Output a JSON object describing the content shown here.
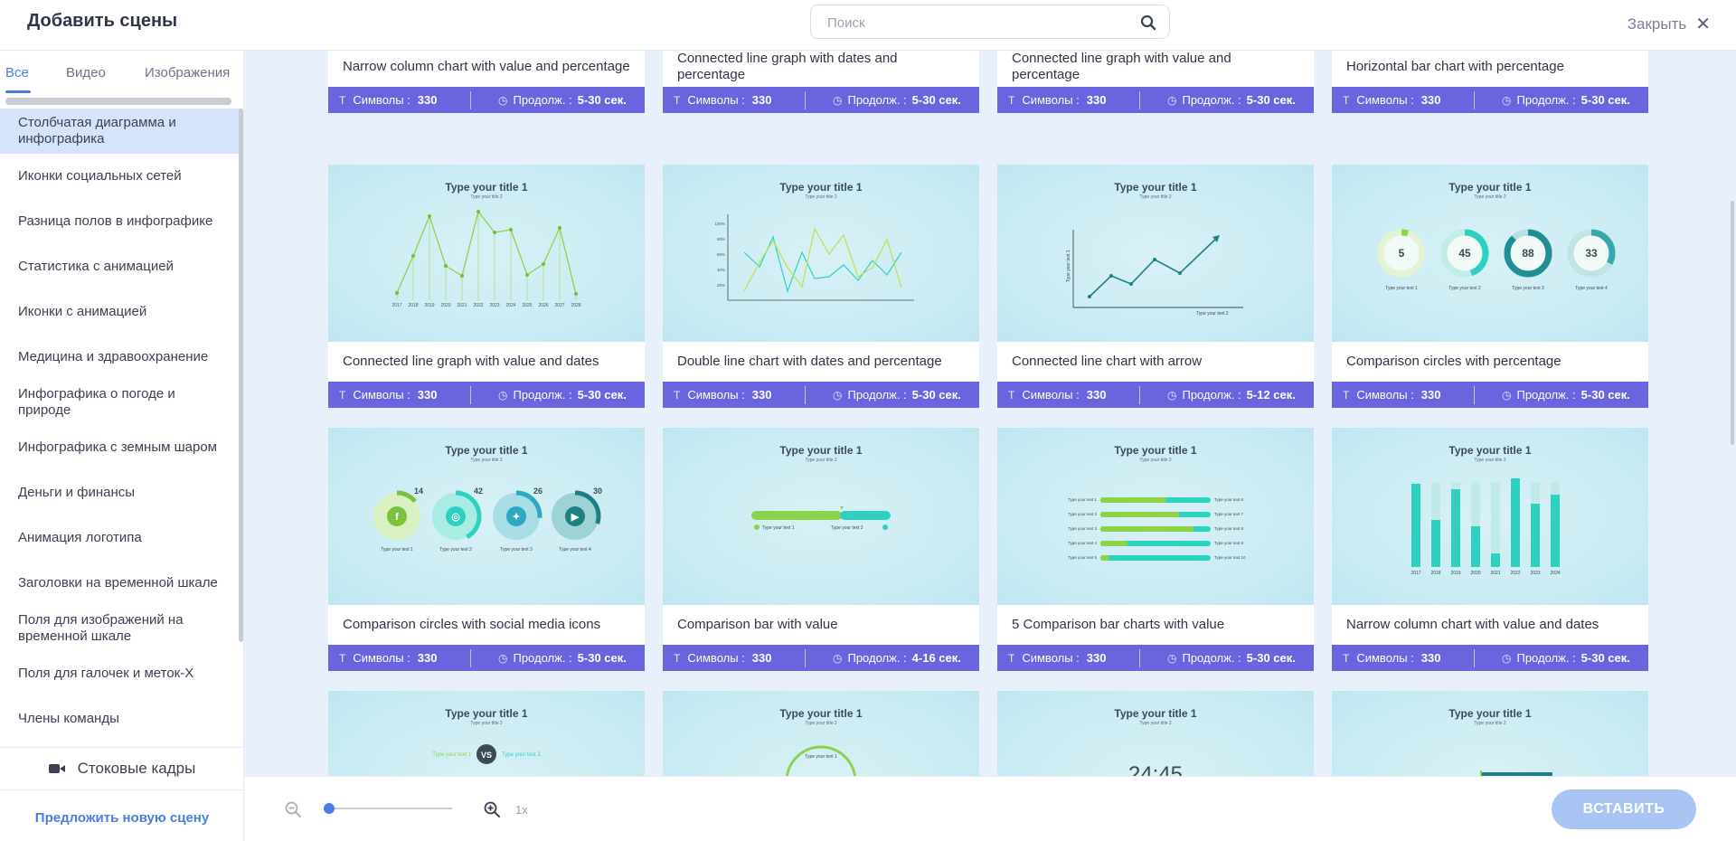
{
  "header": {
    "title": "Добавить сцены",
    "search_placeholder": "Поиск",
    "close_label": "Закрыть"
  },
  "sidebar": {
    "tabs": [
      "Все",
      "Видео",
      "Изображения"
    ],
    "categories": [
      "Столбчатая диаграмма и инфографика",
      "Иконки социальных сетей",
      "Разница полов в инфографике",
      "Статистика с анимацией",
      "Иконки с анимацией",
      "Медицина и здравоохранение",
      "Инфографика о погоде и природе",
      "Инфографика с земным шаром",
      "Деньги и финансы",
      "Анимация логотипа",
      "Заголовки на временной шкале",
      "Поля для изображений на временной шкале",
      "Поля для галочек и меток-X",
      "Члены команды"
    ],
    "stock_label": "Стоковые кадры",
    "suggest_label": "Предложить новую сцену"
  },
  "meta_labels": {
    "symbols": "Символы : ",
    "duration": "Продолж. : "
  },
  "cards": [
    {
      "label": "Narrow column chart with value and percentage",
      "symbols": "330",
      "duration": "5-30 сек."
    },
    {
      "label": "Connected line graph with dates and percentage",
      "symbols": "330",
      "duration": "5-30 сек."
    },
    {
      "label": "Connected line graph with value and percentage",
      "symbols": "330",
      "duration": "5-30 сек."
    },
    {
      "label": "Horizontal bar chart with percentage",
      "symbols": "330",
      "duration": "5-30 сек."
    },
    {
      "label": "Connected line graph with value and dates",
      "symbols": "330",
      "duration": "5-30 сек.",
      "title": "Type your title 1",
      "subtitle": "Type your title 2"
    },
    {
      "label": "Double line chart with dates and percentage",
      "symbols": "330",
      "duration": "5-30 сек.",
      "title": "Type your title 1",
      "subtitle": "Type your title 2"
    },
    {
      "label": "Connected line chart with arrow",
      "symbols": "330",
      "duration": "5-12 сек.",
      "title": "Type your title 1",
      "subtitle": "Type your title 2"
    },
    {
      "label": "Comparison circles with percentage",
      "symbols": "330",
      "duration": "5-30 сек.",
      "title": "Type your title 1",
      "subtitle": "Type your title 2"
    },
    {
      "label": "Comparison circles with social media icons",
      "symbols": "330",
      "duration": "5-30 сек.",
      "title": "Type your title 1",
      "subtitle": "Type your title 2"
    },
    {
      "label": "Comparison bar with value",
      "symbols": "330",
      "duration": "4-16 сек.",
      "title": "Type your title 1",
      "subtitle": "Type your title 2"
    },
    {
      "label": "5 Comparison bar charts with value",
      "symbols": "330",
      "duration": "5-30 сек.",
      "title": "Type your title 1",
      "subtitle": "Type your title 2"
    },
    {
      "label": "Narrow column chart with value and dates",
      "symbols": "330",
      "duration": "5-30 сек.",
      "title": "Type your title 1",
      "subtitle": "Type your title 2"
    },
    {
      "title": "Type your title 1",
      "subtitle": "Type your title 2"
    },
    {
      "title": "Type your title 1",
      "subtitle": "Type your title 2"
    },
    {
      "title": "Type your title 1",
      "subtitle": "Type your title 2"
    },
    {
      "title": "Type your title 1",
      "subtitle": "Type your title 2"
    }
  ],
  "thumbs": {
    "years": [
      "2017",
      "2018",
      "2019",
      "2020",
      "2021",
      "2022",
      "2023",
      "2024",
      "2025",
      "2026",
      "2027",
      "2028"
    ],
    "pct_axis": [
      "100%",
      "80%",
      "60%",
      "40%",
      "20%"
    ],
    "arrow_axis_y": "Type your text 1",
    "arrow_axis_x": "Type your text 2",
    "circle_pcts": [
      "5",
      "45",
      "88",
      "33"
    ],
    "circle_pct_values": [
      5,
      45,
      88,
      33
    ],
    "circle_labels": [
      "Type your text 1",
      "Type your text 2",
      "Type your text 3",
      "Type your text 4"
    ],
    "social_pcts": [
      "14",
      "42",
      "26",
      "30"
    ],
    "social_pct_values": [
      14,
      42,
      26,
      30
    ],
    "compare_labels": [
      "Type your text 1",
      "Type your text 2"
    ],
    "bars_left": [
      "Type your text 1",
      "Type your text 2",
      "Type your text 3",
      "Type your text 4",
      "Type your text 5"
    ],
    "bars_right": [
      "Type your text 6",
      "Type your text 7",
      "Type your text 8",
      "Type your text 9",
      "Type your text 10"
    ],
    "column_years": [
      "2017",
      "2018",
      "2019",
      "2020",
      "2021",
      "2022",
      "2023",
      "2024"
    ],
    "vs_text": "VS",
    "vs_left": "Type your text 1",
    "vs_right": "Type your text 2",
    "timer_text": "24:45"
  },
  "footer": {
    "zoom_level": "1x",
    "insert_label": "ВСТАВИТЬ"
  }
}
